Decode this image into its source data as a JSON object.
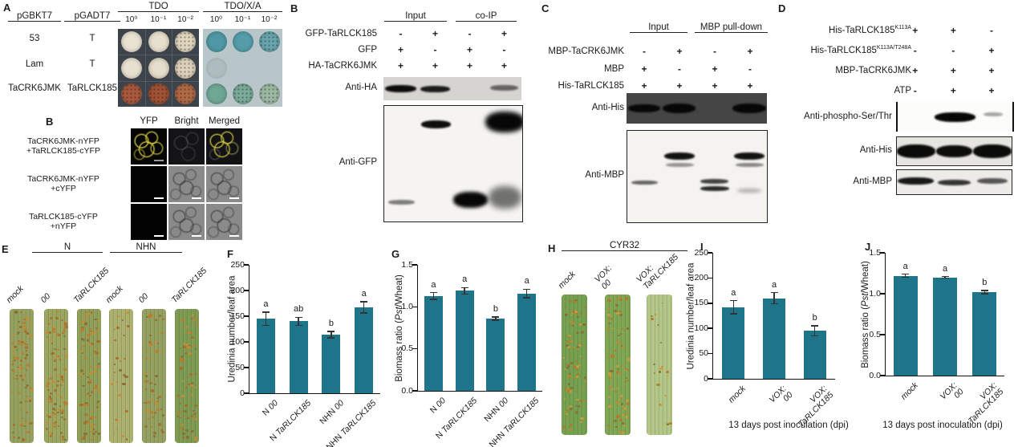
{
  "colors": {
    "bar": "#1e7489",
    "error": "#333333",
    "band": "#070707"
  },
  "panelA": {
    "label": "A",
    "bait_header": "pGBKT7",
    "prey_header": "pGADT7",
    "rows": [
      {
        "bait": "53",
        "prey": "T"
      },
      {
        "bait": "Lam",
        "prey": "T"
      },
      {
        "bait": "TaCRK6JMK",
        "prey": "TaRLCK185"
      }
    ],
    "plates": [
      {
        "title": "TDO",
        "bg": "#3d434b",
        "grid": true,
        "dilutions": [
          "10⁰",
          "10⁻¹",
          "10⁻²"
        ],
        "colonies": [
          [
            {
              "c": "#eae3d2"
            },
            {
              "c": "#e8e0cd"
            },
            {
              "c": "#e0d6bf",
              "speck": true
            }
          ],
          [
            {
              "c": "#e9e1d0"
            },
            {
              "c": "#e6ddca"
            },
            {
              "c": "#ded2bc",
              "speck": true
            }
          ],
          [
            {
              "c": "#a85a3e",
              "speck": true
            },
            {
              "c": "#a15336",
              "speck": true
            },
            {
              "c": "#b06a45",
              "speck": true
            }
          ]
        ]
      },
      {
        "title": "TDO/X/A",
        "bg": "#b9c6c9",
        "grid": false,
        "dilutions": [
          "10⁰",
          "10⁻¹",
          "10⁻²"
        ],
        "colonies": [
          [
            {
              "c": "#4f99a6"
            },
            {
              "c": "#569da9"
            },
            {
              "c": "#68a5ad",
              "speck": true
            }
          ],
          [
            {
              "c": "#a3b2b4",
              "faint": true
            },
            null,
            null
          ],
          [
            {
              "c": "#6fa795"
            },
            {
              "c": "#7cab9b",
              "speck": true
            },
            {
              "c": "#9db9a4",
              "speck": true
            }
          ]
        ]
      }
    ]
  },
  "panelB_bifc": {
    "label": "B",
    "columns": [
      "YFP",
      "Bright",
      "Merged"
    ],
    "rows": [
      {
        "lines": [
          "TaCRK6JMK-nYFP",
          "+TaRLCK185-cYFP"
        ],
        "cells": [
          "yfp",
          "dark",
          "merge"
        ],
        "scalebar_cols": [
          0
        ],
        "scalebar_color": "#9a9a9a"
      },
      {
        "lines": [
          "TaCRK6JMK-nYFP",
          "+cYFP"
        ],
        "cells": [
          "black",
          "bright",
          "bright"
        ],
        "scalebar_cols": [
          0,
          1,
          2
        ],
        "scalebar_color": "#ffffff"
      },
      {
        "lines": [
          "TaRLCK185-cYFP",
          "+nYFP"
        ],
        "cells": [
          "black",
          "bright",
          "bright"
        ],
        "scalebar_cols": [
          0,
          1,
          2
        ],
        "scalebar_color": "#ffffff"
      }
    ]
  },
  "panelB_coip": {
    "label": "B",
    "group_headers": [
      "Input",
      "co-IP"
    ],
    "rows": [
      {
        "parts": [
          {
            "t": "GFP-TaRLCK185"
          }
        ],
        "vals": [
          "-",
          "+",
          "-",
          "+"
        ]
      },
      {
        "parts": [
          {
            "t": "GFP"
          }
        ],
        "vals": [
          "+",
          "-",
          "+",
          "-"
        ]
      },
      {
        "parts": [
          {
            "t": "HA-TaCRK6JMK"
          }
        ],
        "vals": [
          "+",
          "+",
          "+",
          "+"
        ]
      }
    ],
    "blots": [
      {
        "name": "Anti-HA",
        "bg": "#d6d4d1",
        "lanes": 4,
        "bands": [
          {
            "lane": 0,
            "y": 0.5,
            "w": 0.92,
            "h": 9,
            "o": 0.97,
            "blur": 1
          },
          {
            "lane": 1,
            "y": 0.5,
            "w": 0.86,
            "h": 8,
            "o": 0.9,
            "blur": 1
          },
          {
            "lane": 3,
            "y": 0.47,
            "w": 0.8,
            "h": 7,
            "o": 0.55,
            "blur": 1
          }
        ]
      },
      {
        "name": "Anti-GFP",
        "bg": "#f5f4f2",
        "lanes": 4,
        "bands": [
          {
            "lane": 1,
            "y": 0.16,
            "w": 0.85,
            "h": 10,
            "o": 0.97,
            "blur": 1
          },
          {
            "lane": 3,
            "y": 0.14,
            "w": 1.12,
            "h": 26,
            "o": 1,
            "blur": 3
          },
          {
            "lane": 0,
            "y": 0.83,
            "w": 0.78,
            "h": 6,
            "o": 0.5,
            "blur": 1
          },
          {
            "lane": 2,
            "y": 0.81,
            "w": 1.0,
            "h": 20,
            "o": 1,
            "blur": 2
          },
          {
            "lane": 3,
            "y": 0.79,
            "w": 0.95,
            "h": 28,
            "o": 0.55,
            "blur": 4
          }
        ]
      }
    ]
  },
  "panelC": {
    "label": "C",
    "group_headers": [
      "Input",
      "MBP pull-down"
    ],
    "rows": [
      {
        "parts": [
          {
            "t": "MBP-TaCRK6JMK"
          }
        ],
        "vals": [
          "-",
          "+",
          "-",
          "+"
        ]
      },
      {
        "parts": [
          {
            "t": "MBP"
          }
        ],
        "vals": [
          "+",
          "-",
          "+",
          "-"
        ]
      },
      {
        "parts": [
          {
            "t": "His-TaRLCK185"
          }
        ],
        "vals": [
          "+",
          "+",
          "+",
          "+"
        ]
      }
    ],
    "blots": [
      {
        "name": "Anti-His",
        "bg": "#454545",
        "lanes": 4,
        "bands": [
          {
            "lane": 0,
            "y": 0.5,
            "w": 0.9,
            "h": 10,
            "o": 1,
            "blur": 1
          },
          {
            "lane": 1,
            "y": 0.5,
            "w": 0.95,
            "h": 12,
            "o": 1,
            "blur": 1
          },
          {
            "lane": 3,
            "y": 0.5,
            "w": 0.95,
            "h": 12,
            "o": 1,
            "blur": 1
          }
        ]
      },
      {
        "name": "Anti-MBP",
        "bg": "#f4f3f0",
        "lanes": 4,
        "bands": [
          {
            "lane": 0,
            "y": 0.57,
            "w": 0.75,
            "h": 5,
            "o": 0.6,
            "blur": 1
          },
          {
            "lane": 1,
            "y": 0.28,
            "w": 0.88,
            "h": 9,
            "o": 0.95,
            "blur": 1
          },
          {
            "lane": 1,
            "y": 0.37,
            "w": 0.8,
            "h": 5,
            "o": 0.4,
            "blur": 1
          },
          {
            "lane": 2,
            "y": 0.55,
            "w": 0.8,
            "h": 6,
            "o": 0.75,
            "blur": 1
          },
          {
            "lane": 2,
            "y": 0.63,
            "w": 0.82,
            "h": 6,
            "o": 0.85,
            "blur": 1
          },
          {
            "lane": 3,
            "y": 0.28,
            "w": 0.88,
            "h": 9,
            "o": 0.95,
            "blur": 1
          },
          {
            "lane": 3,
            "y": 0.37,
            "w": 0.8,
            "h": 5,
            "o": 0.45,
            "blur": 1
          },
          {
            "lane": 3,
            "y": 0.65,
            "w": 0.7,
            "h": 5,
            "o": 0.3,
            "blur": 2
          }
        ]
      }
    ]
  },
  "panelD": {
    "label": "D",
    "rows": [
      {
        "parts": [
          {
            "t": "His-TaRLCK185"
          },
          {
            "t": "K113A",
            "sup": true
          }
        ],
        "vals": [
          "+",
          "+",
          "-"
        ]
      },
      {
        "parts": [
          {
            "t": "His-TaRLCK185"
          },
          {
            "t": "K113A/T248A",
            "sup": true
          }
        ],
        "vals": [
          "-",
          "-",
          "+"
        ]
      },
      {
        "parts": [
          {
            "t": "MBP-TaCRK6JMK"
          }
        ],
        "vals": [
          "+",
          "+",
          "+"
        ]
      },
      {
        "parts": [
          {
            "t": "ATP"
          }
        ],
        "vals": [
          "-",
          "+",
          "+"
        ]
      }
    ],
    "blots": [
      {
        "name": "Anti-phospho-Ser/Thr",
        "bg": "#fcfcfb",
        "lanes": 3,
        "bands": [
          {
            "lane": 1,
            "y": 0.5,
            "w": 1.05,
            "h": 12,
            "o": 1,
            "blur": 1
          },
          {
            "lane": 2,
            "y": 0.42,
            "w": 0.5,
            "h": 5,
            "o": 0.35,
            "blur": 1
          }
        ]
      },
      {
        "name": "Anti-His",
        "bg": "#e6e5e2",
        "lanes": 3,
        "bands": [
          {
            "lane": 0,
            "y": 0.5,
            "w": 1.0,
            "h": 17,
            "o": 0.98,
            "blur": 1
          },
          {
            "lane": 1,
            "y": 0.5,
            "w": 0.95,
            "h": 15,
            "o": 0.97,
            "blur": 1
          },
          {
            "lane": 2,
            "y": 0.5,
            "w": 1.0,
            "h": 17,
            "o": 0.98,
            "blur": 1
          }
        ]
      },
      {
        "name": "Anti-MBP",
        "bg": "#edece9",
        "lanes": 3,
        "bands": [
          {
            "lane": 0,
            "y": 0.45,
            "w": 0.95,
            "h": 9,
            "o": 0.92,
            "blur": 1
          },
          {
            "lane": 1,
            "y": 0.5,
            "w": 0.85,
            "h": 7,
            "o": 0.8,
            "blur": 1
          },
          {
            "lane": 2,
            "y": 0.45,
            "w": 0.8,
            "h": 7,
            "o": 0.65,
            "blur": 1
          }
        ]
      }
    ]
  },
  "panelE": {
    "label": "E",
    "groups": [
      "N",
      "NHN"
    ],
    "leaf_labels": [
      [
        {
          "t": "mock",
          "i": true
        }
      ],
      [
        {
          "t": "00",
          "i": true
        }
      ],
      [
        {
          "t": "TaRLCK185",
          "i": true
        }
      ],
      [
        {
          "t": "mock",
          "i": true
        }
      ],
      [
        {
          "t": "00",
          "i": true
        }
      ],
      [
        {
          "t": "TaRLCK185",
          "i": true
        }
      ]
    ],
    "leaves": [
      {
        "base": "#94a15e",
        "dots": 90
      },
      {
        "base": "#9aa55f",
        "dots": 100
      },
      {
        "base": "#8f9f58",
        "dots": 95
      },
      {
        "base": "#abb06e",
        "dots": 28
      },
      {
        "base": "#93a05f",
        "dots": 55
      },
      {
        "base": "#7d9a52",
        "dots": 70
      }
    ],
    "dot_colors": [
      "#c07a2a",
      "#cd8a33",
      "#a96a28",
      "#8a6c33"
    ]
  },
  "panelH": {
    "label": "H",
    "title": "CYR32",
    "leaf_labels": [
      [
        {
          "t": "mock",
          "i": true
        }
      ],
      [
        {
          "t": "VOX:",
          "i": true
        },
        {
          "t": "00",
          "i": true,
          "br": true
        }
      ],
      [
        {
          "t": "VOX:",
          "i": true
        },
        {
          "t": "TaRLCK185",
          "i": true,
          "br": true
        }
      ]
    ],
    "leaves": [
      {
        "base": "#74a050",
        "dots": 85
      },
      {
        "base": "#7fa653",
        "dots": 80
      },
      {
        "base": "#b2c687",
        "dots": 20
      }
    ],
    "dot_colors": [
      "#d79a35",
      "#c8862c",
      "#b5762a",
      "#8a6c33"
    ]
  },
  "chart_data": [
    {
      "id": "F",
      "label": "F",
      "type": "bar",
      "ylabel_parts": [
        {
          "t": "Uredinia number/leaf area"
        }
      ],
      "categories_parts": [
        [
          {
            "t": "N "
          },
          {
            "t": "00",
            "i": true
          }
        ],
        [
          {
            "t": "N "
          },
          {
            "t": "TaRLCK185",
            "i": true
          }
        ],
        [
          {
            "t": "NHN "
          },
          {
            "t": "00",
            "i": true
          }
        ],
        [
          {
            "t": "NHN "
          },
          {
            "t": "TaRLCK185",
            "i": true
          }
        ]
      ],
      "values": [
        145,
        140,
        114,
        167
      ],
      "errors": [
        13,
        8,
        6,
        11
      ],
      "letters": [
        "a",
        "ab",
        "b",
        "a"
      ],
      "ylim": [
        0,
        250
      ],
      "yticks": [
        0,
        50,
        100,
        150,
        200,
        250
      ],
      "ytick_labels": [
        "0",
        "50",
        "100",
        "150",
        "200",
        "250"
      ],
      "xlabel": ""
    },
    {
      "id": "G",
      "label": "G",
      "type": "bar",
      "ylabel_parts": [
        {
          "t": "Biomass ratio ("
        },
        {
          "t": "Pst",
          "i": true
        },
        {
          "t": "/Wheat)"
        }
      ],
      "categories_parts": [
        [
          {
            "t": "N "
          },
          {
            "t": "00",
            "i": true
          }
        ],
        [
          {
            "t": "N "
          },
          {
            "t": "TaRLCK185",
            "i": true
          }
        ],
        [
          {
            "t": "NHN "
          },
          {
            "t": "00",
            "i": true
          }
        ],
        [
          {
            "t": "NHN "
          },
          {
            "t": "TaRLCK185",
            "i": true
          }
        ]
      ],
      "values": [
        1.13,
        1.19,
        0.86,
        1.16
      ],
      "errors": [
        0.04,
        0.04,
        0.02,
        0.05
      ],
      "letters": [
        "a",
        "a",
        "b",
        "a"
      ],
      "ylim": [
        0,
        1.5
      ],
      "yticks": [
        0,
        0.5,
        1,
        1.5
      ],
      "ytick_labels": [
        "0.0",
        "0.5",
        "1.0",
        "1.5"
      ],
      "xlabel": ""
    },
    {
      "id": "I",
      "label": "I",
      "type": "bar",
      "ylabel_parts": [
        {
          "t": "Uredinia number/leaf area"
        }
      ],
      "categories_parts": [
        [
          {
            "t": "mock",
            "i": true
          }
        ],
        [
          {
            "t": "VOX:",
            "i": true
          },
          {
            "t": "00",
            "i": true,
            "br": true
          }
        ],
        [
          {
            "t": "VOX:",
            "i": true
          },
          {
            "t": "TaRLCK185",
            "i": true,
            "br": true
          }
        ]
      ],
      "values": [
        142,
        160,
        95
      ],
      "errors": [
        13,
        11,
        10
      ],
      "letters": [
        "a",
        "a",
        "b"
      ],
      "ylim": [
        0,
        250
      ],
      "yticks": [
        0,
        50,
        100,
        150,
        200,
        250
      ],
      "ytick_labels": [
        "0",
        "50",
        "100",
        "150",
        "200",
        "250"
      ],
      "xlabel": "13 days post inoculation (dpi)"
    },
    {
      "id": "J",
      "label": "J",
      "type": "bar",
      "ylabel_parts": [
        {
          "t": "Biomass ratio ("
        },
        {
          "t": "Pst",
          "i": true
        },
        {
          "t": "/Wheat)"
        }
      ],
      "categories_parts": [
        [
          {
            "t": "mock",
            "i": true
          }
        ],
        [
          {
            "t": "VOX:",
            "i": true
          },
          {
            "t": "00",
            "i": true,
            "br": true
          }
        ],
        [
          {
            "t": "VOX:",
            "i": true
          },
          {
            "t": "TaRLCK185",
            "i": true,
            "br": true
          }
        ]
      ],
      "values": [
        1.22,
        1.2,
        1.02
      ],
      "errors": [
        0.02,
        0.01,
        0.02
      ],
      "letters": [
        "a",
        "a",
        "b"
      ],
      "ylim": [
        0,
        1.5
      ],
      "yticks": [
        0,
        0.5,
        1,
        1.5
      ],
      "ytick_labels": [
        "0.0",
        "0.5",
        "1.0",
        "1.5"
      ],
      "xlabel": "13 days post inoculation (dpi)"
    }
  ]
}
